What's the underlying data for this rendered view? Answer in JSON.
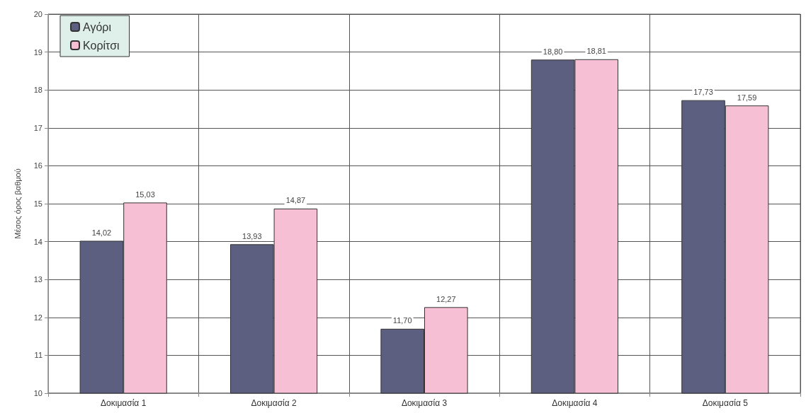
{
  "chart_data": {
    "type": "bar",
    "ylabel": "Μέσος όρος βαθμού",
    "categories": [
      "Δοκιμασία 1",
      "Δοκιμασία 2",
      "Δοκιμασία 3",
      "Δοκιμασία 4",
      "Δοκιμασία 5"
    ],
    "series": [
      {
        "name": "Αγόρι",
        "color": "#5c5f80",
        "values": [
          14.02,
          13.93,
          11.7,
          18.8,
          17.73
        ],
        "value_labels": [
          "14,02",
          "13,93",
          "11,70",
          "18,80",
          "17,73"
        ]
      },
      {
        "name": "Κορίτσι",
        "color": "#f7bfd4",
        "values": [
          15.03,
          14.87,
          12.27,
          18.81,
          17.59
        ],
        "value_labels": [
          "15,03",
          "14,87",
          "12,27",
          "18,81",
          "17,59"
        ]
      }
    ],
    "ylim": [
      10,
      20
    ],
    "yticks": [
      10,
      11,
      12,
      13,
      14,
      15,
      16,
      17,
      18,
      19,
      20
    ],
    "grid": true,
    "legend": "top left"
  }
}
